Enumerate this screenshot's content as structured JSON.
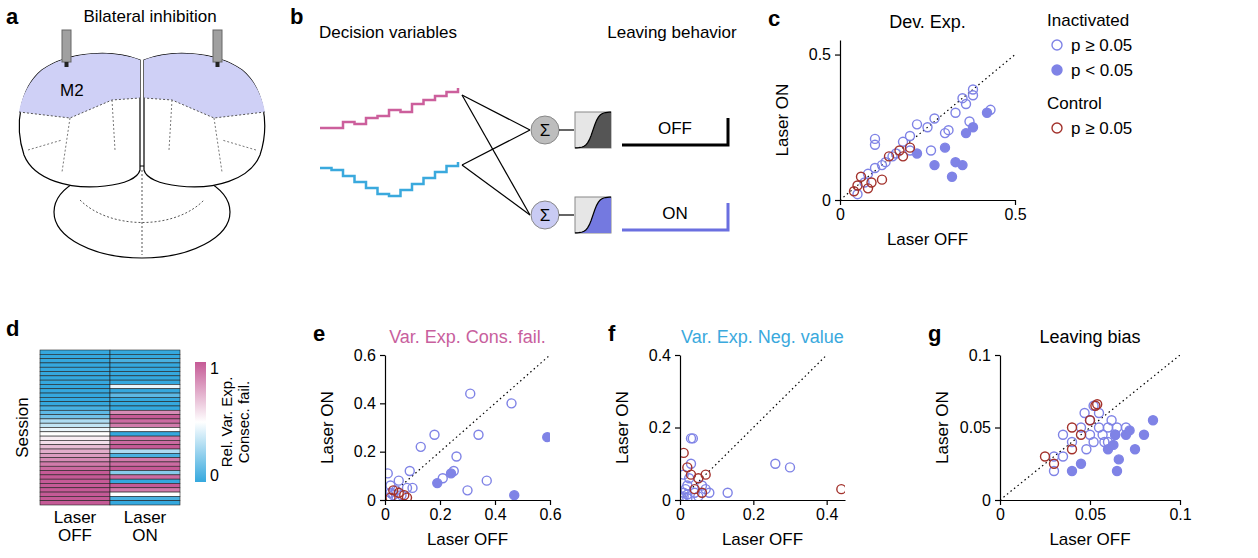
{
  "diagrams": [
    {
      "panel_label": "a",
      "title": "Bilateral inhibition",
      "region": "M2"
    },
    {
      "panel_label": "b",
      "left_title": "Decision variables",
      "right_title": "Leaving behavior",
      "operator": "Σ",
      "conditions": [
        "OFF",
        "ON"
      ]
    }
  ],
  "chart_data": [
    {
      "panel_label": "c",
      "type": "scatter",
      "title": "Dev. Exp.",
      "x_label": "Laser OFF",
      "y_label": "Laser ON",
      "xlim": [
        0,
        0.5
      ],
      "ylim": [
        0,
        0.55
      ],
      "xticks": [
        0,
        0.5
      ],
      "yticks": [
        0,
        0.5
      ],
      "legend": "right",
      "series": [
        {
          "name": "p ≥ 0.05",
          "group": "Inactivated",
          "color": "#7f83e6",
          "marker": "open-circle",
          "x": [
            0.05,
            0.07,
            0.08,
            0.1,
            0.1,
            0.1,
            0.12,
            0.13,
            0.15,
            0.16,
            0.18,
            0.2,
            0.2,
            0.22,
            0.25,
            0.26,
            0.27,
            0.3,
            0.31,
            0.33,
            0.35,
            0.36,
            0.38,
            0.37,
            0.43,
            0.38
          ],
          "y": [
            0.02,
            0.06,
            0.09,
            0.11,
            0.19,
            0.21,
            0.12,
            0.13,
            0.15,
            0.16,
            0.2,
            0.22,
            0.17,
            0.26,
            0.25,
            0.17,
            0.28,
            0.23,
            0.24,
            0.3,
            0.35,
            0.33,
            0.36,
            0.27,
            0.31,
            0.38
          ]
        },
        {
          "name": "p < 0.05",
          "group": "Inactivated",
          "color": "#7f83e6",
          "marker": "filled-circle",
          "x": [
            0.22,
            0.27,
            0.3,
            0.32,
            0.33,
            0.35,
            0.36,
            0.38,
            0.42
          ],
          "y": [
            0.16,
            0.12,
            0.18,
            0.08,
            0.13,
            0.12,
            0.23,
            0.25,
            0.3
          ]
        },
        {
          "name": "p ≥ 0.05",
          "group": "Control",
          "color": "#a3322c",
          "marker": "open-circle",
          "x": [
            0.04,
            0.05,
            0.06,
            0.08,
            0.09,
            0.12,
            0.14,
            0.17,
            0.18,
            0.2
          ],
          "y": [
            0.03,
            0.05,
            0.08,
            0.04,
            0.06,
            0.07,
            0.15,
            0.17,
            0.15,
            0.18
          ]
        }
      ]
    },
    {
      "panel_label": "d",
      "type": "heatmap",
      "categories": [
        "Laser OFF",
        "Laser ON"
      ],
      "y_label": "Session",
      "tick_labels": "x",
      "cells": [
        [
          0,
          0
        ],
        [
          0,
          0
        ],
        [
          0,
          0.05
        ],
        [
          0,
          0
        ],
        [
          0,
          0
        ],
        [
          0,
          0
        ],
        [
          0,
          0
        ],
        [
          0,
          0
        ],
        [
          0,
          0.45
        ],
        [
          0,
          0
        ],
        [
          0,
          0.1
        ],
        [
          0,
          0
        ],
        [
          0,
          0
        ],
        [
          0.05,
          0
        ],
        [
          0.1,
          0.85
        ],
        [
          0.15,
          1
        ],
        [
          0.3,
          0.95
        ],
        [
          0.35,
          0.9
        ],
        [
          0.45,
          0.5
        ],
        [
          0.5,
          0
        ],
        [
          0.55,
          0.9
        ],
        [
          0.6,
          0.95
        ],
        [
          0.7,
          1
        ],
        [
          0.75,
          0.3
        ],
        [
          0.8,
          0.05
        ],
        [
          0.85,
          0.9
        ],
        [
          0.9,
          0.95
        ],
        [
          0.95,
          1
        ],
        [
          1,
          0.2
        ],
        [
          1,
          0.95
        ],
        [
          1,
          0
        ],
        [
          1,
          1
        ],
        [
          1,
          0.9
        ],
        [
          1,
          0.5
        ],
        [
          1,
          0.05
        ],
        [
          1,
          0
        ]
      ],
      "colorbar": {
        "range": [
          0,
          1
        ],
        "ticks": [
          0,
          1
        ],
        "label": "Rel. Var. Exp. Consec. fail."
      }
    },
    {
      "panel_label": "e",
      "type": "scatter",
      "title": "Var. Exp. Cons. fail.",
      "x_label": "Laser OFF",
      "y_label": "Laser ON",
      "xlim": [
        0,
        0.6
      ],
      "ylim": [
        0,
        0.6
      ],
      "xticks": [
        0,
        0.2,
        0.4,
        0.6
      ],
      "yticks": [
        0,
        0.2,
        0.4,
        0.6
      ],
      "series": [
        {
          "color": "#7f83e6",
          "marker": "open-circle",
          "x": [
            0.01,
            0.02,
            0.03,
            0.02,
            0.04,
            0.05,
            0.08,
            0.09,
            0.1,
            0.13,
            0.18,
            0.21,
            0.25,
            0.26,
            0.3,
            0.31,
            0.34,
            0.37,
            0.46,
            0.01,
            0.06
          ],
          "y": [
            0.01,
            0.03,
            0.02,
            0.06,
            0.04,
            0.08,
            0.05,
            0.12,
            0.05,
            0.22,
            0.27,
            0.09,
            0.12,
            0.18,
            0.04,
            0.44,
            0.27,
            0.08,
            0.4,
            0.11,
            0.02
          ]
        },
        {
          "color": "#7f83e6",
          "marker": "filled-circle",
          "x": [
            0.19,
            0.24,
            0.47,
            0.59
          ],
          "y": [
            0.07,
            0.11,
            0.02,
            0.26
          ]
        },
        {
          "color": "#a3322c",
          "marker": "open-circle",
          "x": [
            0.02,
            0.05,
            0.07,
            0.08,
            0.03
          ],
          "y": [
            0.01,
            0.03,
            0.02,
            0.01,
            0.04
          ]
        }
      ]
    },
    {
      "panel_label": "f",
      "type": "scatter",
      "title": "Var. Exp. Neg. value",
      "x_label": "Laser OFF",
      "y_label": "Laser ON",
      "xlim": [
        0,
        0.45
      ],
      "ylim": [
        0,
        0.4
      ],
      "xticks": [
        0,
        0.2,
        0.4
      ],
      "yticks": [
        0,
        0.2,
        0.4
      ],
      "series": [
        {
          "color": "#7f83e6",
          "marker": "open-circle",
          "x": [
            0.005,
            0.01,
            0.01,
            0.015,
            0.02,
            0.02,
            0.025,
            0.03,
            0.035,
            0.03,
            0.04,
            0.05,
            0.06,
            0.07,
            0.08,
            0.13,
            0.26,
            0.3,
            0.01,
            0.02
          ],
          "y": [
            0.005,
            0.01,
            0.02,
            0.03,
            0.005,
            0.04,
            0.06,
            0.17,
            0.17,
            0.1,
            0.02,
            0.01,
            0.04,
            0.03,
            0.02,
            0.02,
            0.1,
            0.09,
            0.07,
            0.015
          ]
        },
        {
          "color": "#a3322c",
          "marker": "open-circle",
          "x": [
            0.01,
            0.02,
            0.03,
            0.05,
            0.06,
            0.07,
            0.04,
            0.44
          ],
          "y": [
            0.13,
            0.09,
            0.07,
            0.06,
            0.02,
            0.07,
            0.03,
            0.03
          ]
        }
      ]
    },
    {
      "panel_label": "g",
      "type": "scatter",
      "title": "Leaving bias",
      "x_label": "Laser OFF",
      "y_label": "Laser ON",
      "xlim": [
        0,
        0.1
      ],
      "ylim": [
        0,
        0.1
      ],
      "xticks": [
        0,
        0.05,
        0.1
      ],
      "yticks": [
        0,
        0.05,
        0.1
      ],
      "series": [
        {
          "color": "#7f83e6",
          "marker": "open-circle",
          "x": [
            0.03,
            0.03,
            0.035,
            0.04,
            0.045,
            0.047,
            0.05,
            0.05,
            0.052,
            0.055,
            0.055,
            0.057,
            0.058,
            0.06,
            0.06,
            0.062,
            0.064,
            0.065,
            0.07,
            0.035,
            0.048,
            0.052
          ],
          "y": [
            0.02,
            0.03,
            0.045,
            0.04,
            0.05,
            0.06,
            0.045,
            0.055,
            0.065,
            0.06,
            0.05,
            0.045,
            0.04,
            0.04,
            0.05,
            0.055,
            0.045,
            0.05,
            0.05,
            0.03,
            0.035,
            0.04
          ]
        },
        {
          "color": "#7f83e6",
          "marker": "filled-circle",
          "x": [
            0.04,
            0.045,
            0.06,
            0.063,
            0.064,
            0.066,
            0.07,
            0.072,
            0.075,
            0.08,
            0.085,
            0.065
          ],
          "y": [
            0.02,
            0.025,
            0.035,
            0.038,
            0.045,
            0.028,
            0.045,
            0.048,
            0.035,
            0.045,
            0.055,
            0.02
          ]
        },
        {
          "color": "#a3322c",
          "marker": "open-circle",
          "x": [
            0.025,
            0.03,
            0.04,
            0.04,
            0.045,
            0.053,
            0.054,
            0.05
          ],
          "y": [
            0.03,
            0.025,
            0.035,
            0.05,
            0.045,
            0.065,
            0.066,
            0.055
          ]
        }
      ]
    }
  ]
}
